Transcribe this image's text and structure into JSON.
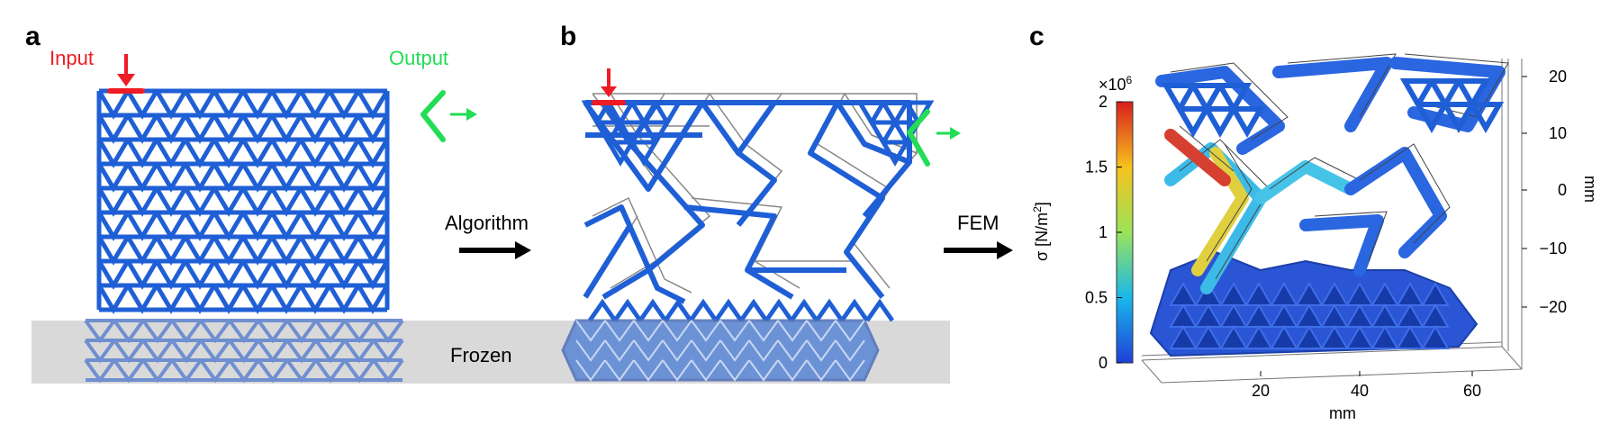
{
  "panels": {
    "a": {
      "letter": "a",
      "input_label": "Input",
      "output_label": "Output",
      "frozen_label": "Frozen"
    },
    "b": {
      "letter": "b",
      "arrow_label": "Algorithm"
    },
    "c": {
      "letter": "c",
      "arrow_label": "FEM",
      "colorbar": {
        "multiplier": "×10",
        "exponent": "6",
        "label": "σ [N/m",
        "label_exp": "2",
        "label_end": "]",
        "ticks": [
          "2",
          "1.5",
          "1",
          "0.5",
          "0"
        ]
      },
      "x_axis": {
        "label": "mm",
        "ticks": [
          "20",
          "40",
          "60"
        ]
      },
      "z_axis": {
        "label": "mm",
        "ticks": [
          "20",
          "10",
          "0",
          "−10",
          "−20"
        ]
      }
    }
  },
  "colors": {
    "lattice": "#1f5fd6",
    "input": "#ee1c25",
    "output": "#22dd55",
    "frozen_band": "#d9d9d9",
    "frozen_lattice": "#6f8fd0"
  }
}
